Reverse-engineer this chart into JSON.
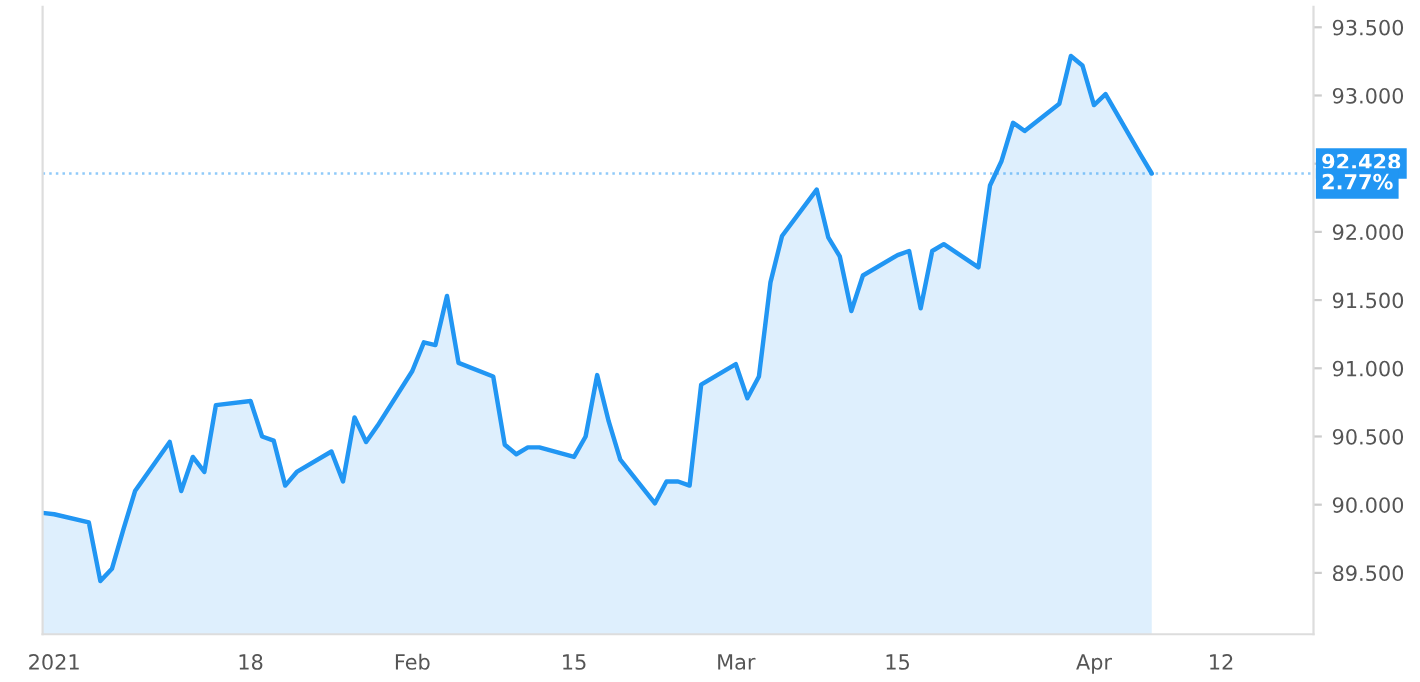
{
  "chart_data": {
    "type": "area",
    "x": [
      "2020-12-31",
      "2021-01-01",
      "2021-01-04",
      "2021-01-05",
      "2021-01-06",
      "2021-01-07",
      "2021-01-08",
      "2021-01-11",
      "2021-01-12",
      "2021-01-13",
      "2021-01-14",
      "2021-01-15",
      "2021-01-18",
      "2021-01-19",
      "2021-01-20",
      "2021-01-21",
      "2021-01-22",
      "2021-01-25",
      "2021-01-26",
      "2021-01-27",
      "2021-01-28",
      "2021-01-29",
      "2021-02-01",
      "2021-02-02",
      "2021-02-03",
      "2021-02-04",
      "2021-02-05",
      "2021-02-08",
      "2021-02-09",
      "2021-02-10",
      "2021-02-11",
      "2021-02-12",
      "2021-02-15",
      "2021-02-16",
      "2021-02-17",
      "2021-02-18",
      "2021-02-19",
      "2021-02-22",
      "2021-02-23",
      "2021-02-24",
      "2021-02-25",
      "2021-02-26",
      "2021-03-01",
      "2021-03-02",
      "2021-03-03",
      "2021-03-04",
      "2021-03-05",
      "2021-03-08",
      "2021-03-09",
      "2021-03-10",
      "2021-03-11",
      "2021-03-12",
      "2021-03-15",
      "2021-03-16",
      "2021-03-17",
      "2021-03-18",
      "2021-03-19",
      "2021-03-22",
      "2021-03-23",
      "2021-03-24",
      "2021-03-25",
      "2021-03-26",
      "2021-03-29",
      "2021-03-30",
      "2021-03-31",
      "2021-04-01",
      "2021-04-02",
      "2021-04-05",
      "2021-04-06"
    ],
    "series": [
      {
        "color": "#2196f3",
        "values": [
          89.94,
          89.93,
          89.87,
          89.44,
          89.53,
          89.82,
          90.1,
          90.46,
          90.1,
          90.35,
          90.24,
          90.73,
          90.76,
          90.5,
          90.47,
          90.14,
          90.24,
          90.39,
          90.17,
          90.64,
          90.46,
          90.58,
          90.98,
          91.19,
          91.17,
          91.53,
          91.04,
          90.94,
          90.44,
          90.37,
          90.42,
          90.42,
          90.35,
          90.5,
          90.95,
          90.61,
          90.33,
          90.01,
          90.17,
          90.17,
          90.14,
          90.88,
          91.03,
          90.78,
          90.94,
          91.63,
          91.97,
          92.31,
          91.96,
          91.82,
          91.42,
          91.68,
          91.83,
          91.86,
          91.44,
          91.86,
          91.91,
          91.74,
          92.34,
          92.52,
          92.8,
          92.74,
          92.94,
          93.29,
          93.22,
          92.93,
          93.01,
          92.57,
          92.428
        ]
      }
    ],
    "xlim": [
      "2020-12-31",
      "2021-04-20"
    ],
    "xticks": [
      {
        "value": "2021-01-01",
        "label": "2021"
      },
      {
        "value": "2021-01-18",
        "label": "18"
      },
      {
        "value": "2021-02-01",
        "label": "Feb"
      },
      {
        "value": "2021-02-15",
        "label": "15"
      },
      {
        "value": "2021-03-01",
        "label": "Mar"
      },
      {
        "value": "2021-03-15",
        "label": "15"
      },
      {
        "value": "2021-04-01",
        "label": "Apr"
      },
      {
        "value": "2021-04-12",
        "label": "12"
      }
    ],
    "ylim": [
      89.05,
      93.65
    ],
    "yticks": [
      {
        "value": 89.5,
        "label": "89.500"
      },
      {
        "value": 90.0,
        "label": "90.000"
      },
      {
        "value": 90.5,
        "label": "90.500"
      },
      {
        "value": 91.0,
        "label": "91.000"
      },
      {
        "value": 91.5,
        "label": "91.500"
      },
      {
        "value": 92.0,
        "label": "92.000"
      },
      {
        "value": 92.5,
        "label": null
      },
      {
        "value": 93.0,
        "label": "93.000"
      },
      {
        "value": 93.5,
        "label": "93.500"
      }
    ],
    "ref_lines": [
      {
        "axis": "y",
        "value": 92.428,
        "label": "92.428",
        "color": "#90caf9",
        "line_style": "dotted"
      }
    ],
    "annotations": [
      "2.77%"
    ],
    "grid": false,
    "legend": false,
    "marker": "none",
    "line_style": "solid"
  }
}
